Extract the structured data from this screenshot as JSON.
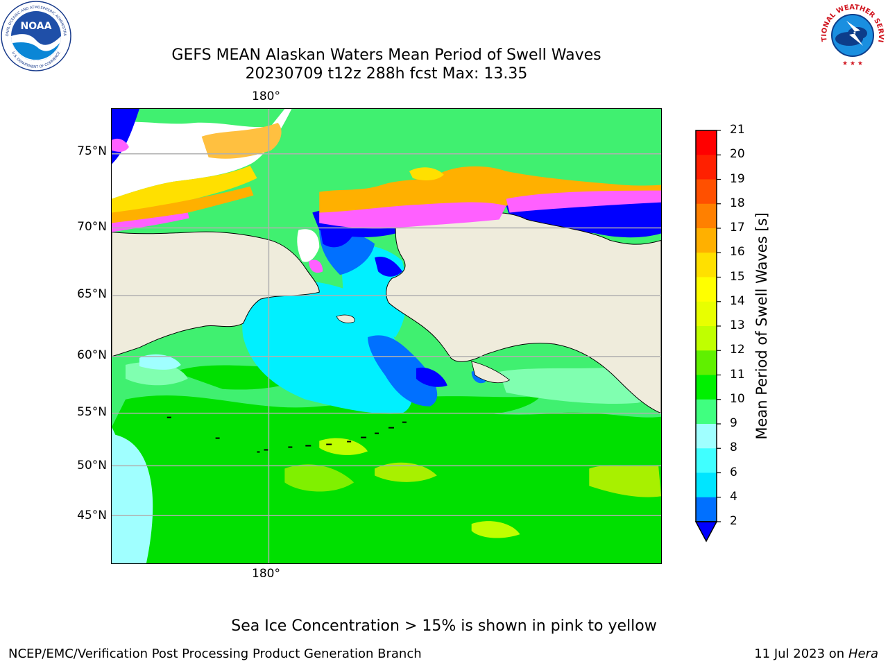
{
  "title": {
    "line1": "GEFS MEAN Alaskan Waters Mean Period of Swell Waves",
    "line2": "20230709 t12z 288h fcst   Max: 13.35"
  },
  "map": {
    "lon_label_top": "180°",
    "lon_label_bottom": "180°",
    "lat_labels": [
      "75°N",
      "70°N",
      "65°N",
      "60°N",
      "55°N",
      "50°N",
      "45°N"
    ],
    "colors": {
      "land": "#efecdc",
      "ice_white": "#ffffff",
      "grid": "#b0b0b0",
      "coast": "#000000"
    }
  },
  "colorbar": {
    "title": "Mean Period of Swell Waves [s]",
    "ticks": [
      "21",
      "20",
      "19",
      "18",
      "17",
      "16",
      "15",
      "14",
      "13",
      "12",
      "11",
      "10",
      "9",
      "8",
      "6",
      "4",
      "2"
    ],
    "colors": [
      "#0000ff",
      "#0070ff",
      "#00e5ff",
      "#40ffff",
      "#a0ffff",
      "#40ff80",
      "#00f000",
      "#60f000",
      "#c0ff00",
      "#e8ff00",
      "#ffff00",
      "#ffe000",
      "#ffb000",
      "#ff8000",
      "#ff5000",
      "#ff2000",
      "#ff0000"
    ]
  },
  "footnote": "Sea Ice Concentration > 15% is shown in pink to yellow",
  "credits": {
    "left": "NCEP/EMC/Verification Post Processing Product Generation Branch",
    "right_date": "11 Jul 2023 on ",
    "right_machine": "Hera"
  },
  "logos": {
    "noaa_text": "NOAA",
    "noaa_ring_top": "NATIONAL OCEANIC AND ATMOSPHERIC ADMINISTRATION",
    "noaa_ring_bottom": "U.S. DEPARTMENT OF COMMERCE",
    "nws_ring": "NATIONAL WEATHER SERVICE"
  }
}
